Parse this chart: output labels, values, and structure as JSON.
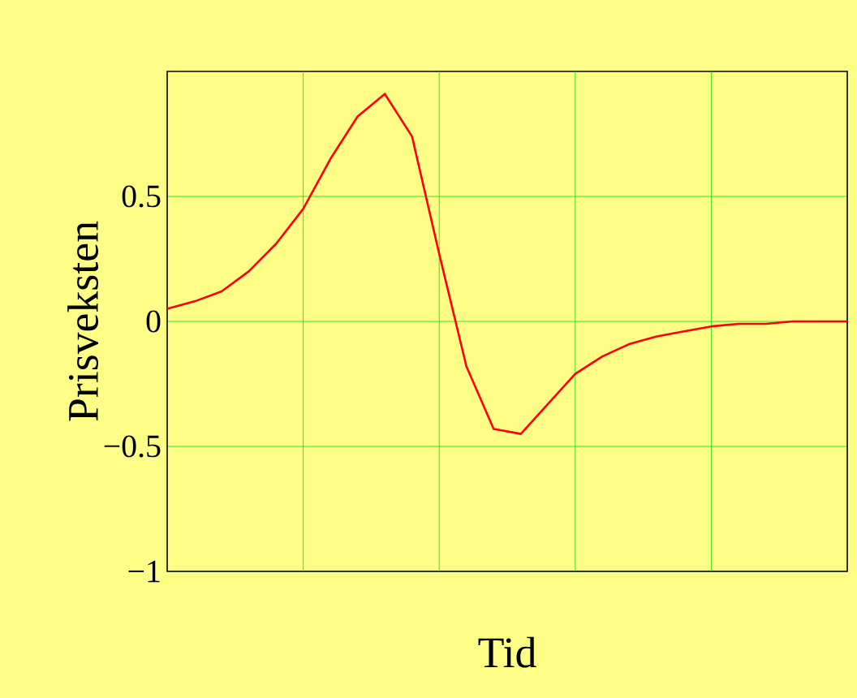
{
  "chart_data": {
    "type": "line",
    "xlabel": "Tid",
    "ylabel": "Prisveksten",
    "categories": [
      null,
      null,
      null,
      null,
      null,
      null,
      null,
      null,
      null,
      null,
      null,
      null,
      null,
      null,
      null,
      null,
      null,
      null,
      null,
      null,
      null,
      null,
      null,
      null,
      null,
      null
    ],
    "series": [
      {
        "color": "#ff0000",
        "values": [
          0.05,
          0.08,
          0.12,
          0.2,
          0.31,
          0.45,
          0.65,
          0.82,
          0.91,
          0.74,
          0.27,
          -0.18,
          -0.43,
          -0.45,
          -0.33,
          -0.21,
          -0.14,
          -0.09,
          -0.06,
          -0.04,
          -0.02,
          -0.01,
          -0.01,
          0,
          0,
          0
        ]
      }
    ],
    "ylim": [
      -1,
      1
    ],
    "yticks": [
      {
        "value": -1,
        "label": "−1"
      },
      {
        "value": -0.5,
        "label": "−0.5"
      },
      0,
      0.5
    ],
    "tick_labels": "y",
    "grid": true
  }
}
